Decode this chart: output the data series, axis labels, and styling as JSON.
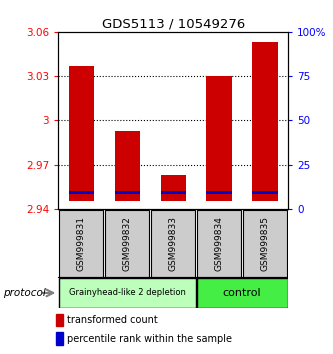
{
  "title": "GDS5113 / 10549276",
  "samples": [
    "GSM999831",
    "GSM999832",
    "GSM999833",
    "GSM999834",
    "GSM999835"
  ],
  "bar_bottom": [
    2.945,
    2.945,
    2.945,
    2.945,
    2.945
  ],
  "bar_top": [
    3.037,
    2.993,
    2.963,
    3.03,
    3.053
  ],
  "percentile_value": [
    2.951,
    2.951,
    2.951,
    2.951,
    2.951
  ],
  "bar_color": "#cc0000",
  "percentile_color": "#0000cc",
  "ylim_left": [
    2.94,
    3.06
  ],
  "ylim_right": [
    0,
    100
  ],
  "yticks_left": [
    2.94,
    2.97,
    3.0,
    3.03,
    3.06
  ],
  "ytick_labels_left": [
    "2.94",
    "2.97",
    "3",
    "3.03",
    "3.06"
  ],
  "yticks_right": [
    0,
    25,
    50,
    75,
    100
  ],
  "ytick_labels_right": [
    "0",
    "25",
    "50",
    "75",
    "100%"
  ],
  "group1_label": "Grainyhead-like 2 depletion",
  "group1_color": "#bbffbb",
  "group2_label": "control",
  "group2_color": "#44ee44",
  "protocol_label": "protocol",
  "legend_red": "transformed count",
  "legend_blue": "percentile rank within the sample",
  "background_color": "#ffffff",
  "bar_width": 0.55,
  "sample_box_color": "#cccccc"
}
